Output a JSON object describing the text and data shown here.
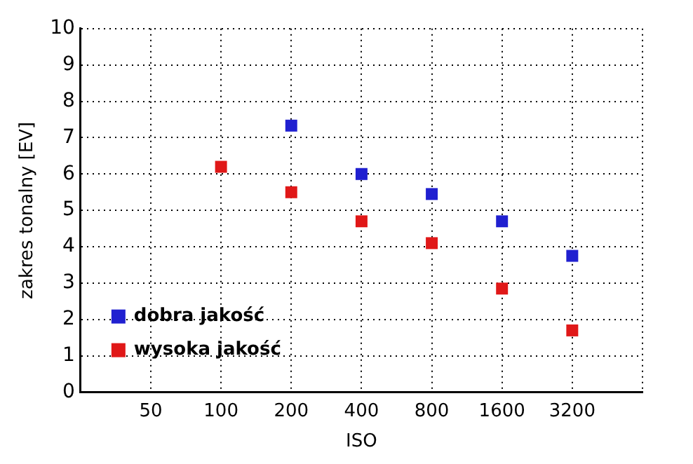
{
  "chart_data": {
    "type": "scatter",
    "xlabel": "ISO",
    "ylabel": "zakres tonalny [EV]",
    "categories": [
      null,
      "50",
      "100",
      "200",
      "400",
      "800",
      "1600",
      "3200",
      null
    ],
    "series": [
      {
        "name": "dobra jakość",
        "color": "#2020d0",
        "values": [
          null,
          null,
          null,
          7.33,
          6.0,
          5.45,
          4.7,
          3.75,
          null
        ]
      },
      {
        "name": "wysoka jakość",
        "color": "#e01818",
        "values": [
          null,
          null,
          6.2,
          5.5,
          4.7,
          4.1,
          2.85,
          1.7,
          null
        ]
      }
    ],
    "ylim": [
      0,
      10
    ],
    "yticks": [
      0,
      1,
      2,
      3,
      4,
      5,
      6,
      7,
      8,
      9,
      10
    ],
    "grid": true,
    "legend": "bottom left",
    "marker": "square"
  }
}
